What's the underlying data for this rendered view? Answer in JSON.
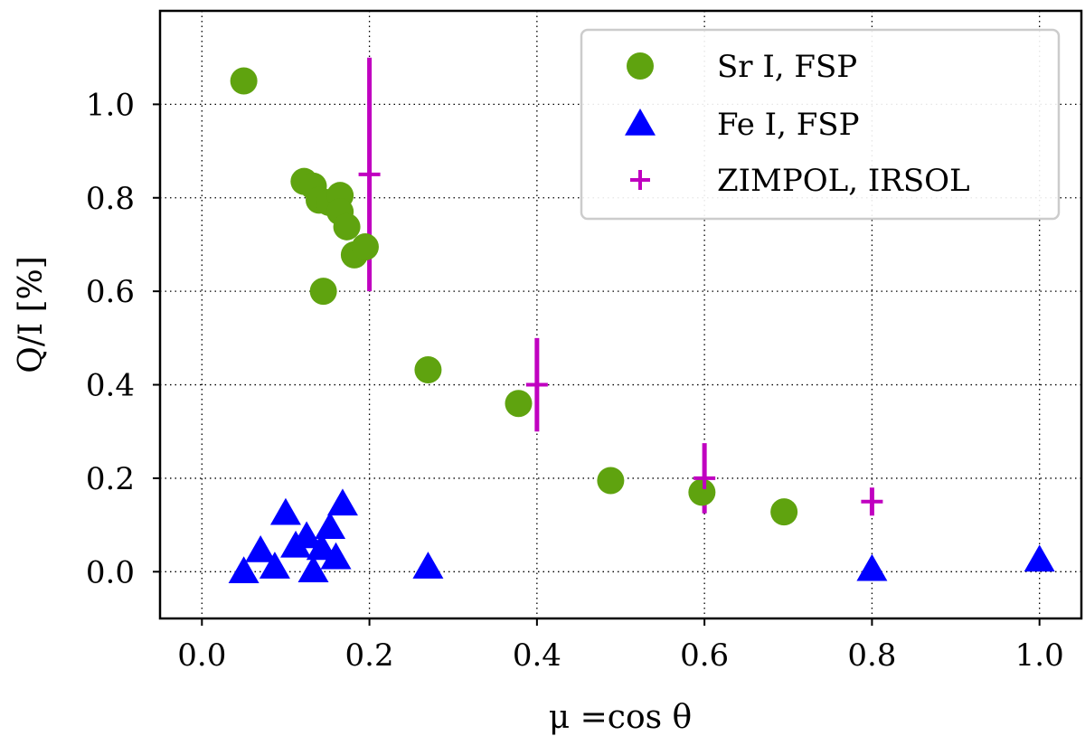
{
  "chart_data": {
    "type": "scatter",
    "title": "",
    "xlabel": "μ =cos θ",
    "ylabel": "Q/I [%]",
    "xlim": [
      -0.05,
      1.05
    ],
    "ylim": [
      -0.1,
      1.2
    ],
    "x_ticks": [
      0.0,
      0.2,
      0.4,
      0.6,
      0.8,
      1.0
    ],
    "x_tick_labels": [
      "0.0",
      "0.2",
      "0.4",
      "0.6",
      "0.8",
      "1.0"
    ],
    "y_ticks": [
      0.0,
      0.2,
      0.4,
      0.6,
      0.8,
      1.0
    ],
    "y_tick_labels": [
      "0.0",
      "0.2",
      "0.4",
      "0.6",
      "0.8",
      "1.0"
    ],
    "grid": true,
    "legend_position": "top-right",
    "series": [
      {
        "name": "Sr I, FSP",
        "marker": "circle",
        "color": "#5fa30f",
        "points": [
          {
            "x": 0.05,
            "y": 1.05
          },
          {
            "x": 0.122,
            "y": 0.835
          },
          {
            "x": 0.133,
            "y": 0.825
          },
          {
            "x": 0.14,
            "y": 0.795
          },
          {
            "x": 0.152,
            "y": 0.79
          },
          {
            "x": 0.165,
            "y": 0.805
          },
          {
            "x": 0.165,
            "y": 0.77
          },
          {
            "x": 0.173,
            "y": 0.738
          },
          {
            "x": 0.182,
            "y": 0.678
          },
          {
            "x": 0.195,
            "y": 0.695
          },
          {
            "x": 0.145,
            "y": 0.6
          },
          {
            "x": 0.27,
            "y": 0.432
          },
          {
            "x": 0.378,
            "y": 0.36
          },
          {
            "x": 0.488,
            "y": 0.195
          },
          {
            "x": 0.597,
            "y": 0.17
          },
          {
            "x": 0.695,
            "y": 0.128
          }
        ]
      },
      {
        "name": "Fe I, FSP",
        "marker": "triangle",
        "color": "#0000ff",
        "points": [
          {
            "x": 0.05,
            "y": 0.0
          },
          {
            "x": 0.07,
            "y": 0.045
          },
          {
            "x": 0.087,
            "y": 0.01
          },
          {
            "x": 0.1,
            "y": 0.125
          },
          {
            "x": 0.112,
            "y": 0.055
          },
          {
            "x": 0.125,
            "y": 0.075
          },
          {
            "x": 0.133,
            "y": 0.002
          },
          {
            "x": 0.143,
            "y": 0.05
          },
          {
            "x": 0.153,
            "y": 0.095
          },
          {
            "x": 0.16,
            "y": 0.03
          },
          {
            "x": 0.168,
            "y": 0.145
          },
          {
            "x": 0.27,
            "y": 0.01
          },
          {
            "x": 0.8,
            "y": 0.005
          },
          {
            "x": 1.0,
            "y": 0.025
          }
        ]
      },
      {
        "name": "ZIMPOL, IRSOL",
        "marker": "plus-errorbar",
        "color": "#c000c0",
        "points": [
          {
            "x": 0.2,
            "y": 0.85,
            "yerr": 0.25
          },
          {
            "x": 0.4,
            "y": 0.4,
            "yerr": 0.1
          },
          {
            "x": 0.6,
            "y": 0.2,
            "yerr": 0.075
          },
          {
            "x": 0.8,
            "y": 0.15,
            "yerr": 0.03
          }
        ]
      }
    ]
  }
}
